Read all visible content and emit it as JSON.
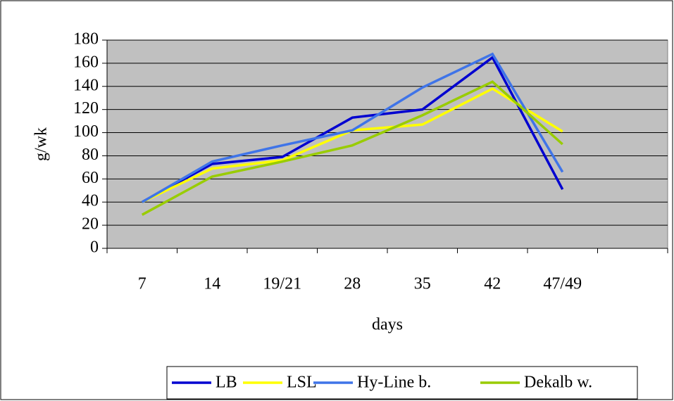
{
  "chart_data": {
    "type": "line",
    "categories": [
      "7",
      "14",
      "19/21",
      "28",
      "35",
      "42",
      "47/49",
      null
    ],
    "series": [
      {
        "name": "LB",
        "color": "#0000d0",
        "values": [
          40,
          73,
          79,
          113,
          120,
          165,
          51,
          null
        ]
      },
      {
        "name": "LSL",
        "color": "#ffff00",
        "values": [
          40,
          69,
          76,
          102,
          107,
          138,
          101,
          null
        ]
      },
      {
        "name": "Hy-Line b.",
        "color": "#3f74e8",
        "values": [
          40,
          75,
          89,
          102,
          139,
          168,
          66,
          null
        ]
      },
      {
        "name": "Dekalb w.",
        "color": "#99cc00",
        "values": [
          29,
          62,
          75,
          89,
          115,
          144,
          90,
          null
        ]
      }
    ],
    "x_label": "days",
    "y_label": "g/wk",
    "ylim": [
      0,
      180
    ],
    "yticks": [
      0,
      20,
      40,
      60,
      80,
      100,
      120,
      140,
      160,
      180
    ],
    "grid": true,
    "legend": "bottom",
    "background": "#c0c0c0"
  }
}
